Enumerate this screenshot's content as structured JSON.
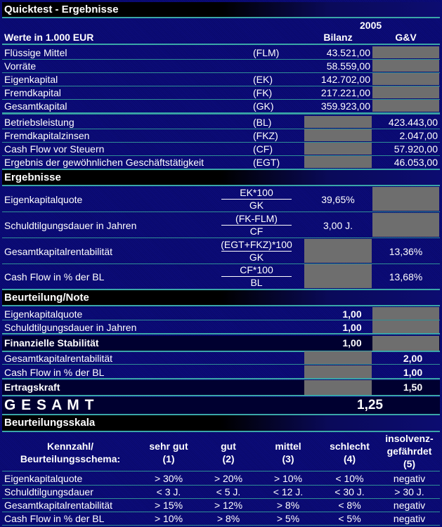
{
  "title": "Quicktest - Ergebnisse",
  "header": {
    "year": "2005",
    "units_label": "Werte in 1.000 EUR",
    "col_bilanz": "Bilanz",
    "col_guv": "G&V"
  },
  "inputs": [
    {
      "label": "Flüssige Mittel",
      "abbr": "(FLM)",
      "bilanz": "43.521,00",
      "guv": ""
    },
    {
      "label": "Vorräte",
      "abbr": "",
      "bilanz": "58.559,00",
      "guv": ""
    },
    {
      "label": "Eigenkapital",
      "abbr": "(EK)",
      "bilanz": "142.702,00",
      "guv": ""
    },
    {
      "label": "Fremdkapital",
      "abbr": "(FK)",
      "bilanz": "217.221,00",
      "guv": ""
    },
    {
      "label": "Gesamtkapital",
      "abbr": "(GK)",
      "bilanz": "359.923,00",
      "guv": ""
    },
    {
      "label": "Betriebsleistung",
      "abbr": "(BL)",
      "bilanz": "",
      "guv": "423.443,00"
    },
    {
      "label": "Fremdkapitalzinsen",
      "abbr": "(FKZ)",
      "bilanz": "",
      "guv": "2.047,00"
    },
    {
      "label": "Cash Flow vor Steuern",
      "abbr": "(CF)",
      "bilanz": "",
      "guv": "57.920,00"
    },
    {
      "label": "Ergebnis der gewöhnlichen Geschäftstätigkeit",
      "abbr": "(EGT)",
      "bilanz": "",
      "guv": "46.053,00"
    }
  ],
  "ergebnisse": {
    "title": "Ergebnisse",
    "rows": [
      {
        "label": "Eigenkapitalquote",
        "num": "EK*100",
        "den": "GK",
        "bilanz": "39,65%",
        "guv": ""
      },
      {
        "label": "Schuldtilgungsdauer in Jahren",
        "num": "(FK-FLM)",
        "den": "CF",
        "bilanz": "3,00 J.",
        "guv": ""
      },
      {
        "label": "Gesamtkapitalrentabilität",
        "num": "(EGT+FKZ)*100",
        "den": "GK",
        "bilanz": "",
        "guv": "13,36%"
      },
      {
        "label": "Cash Flow in % der BL",
        "num": "CF*100",
        "den": "BL",
        "bilanz": "",
        "guv": "13,68%"
      }
    ]
  },
  "beurteilung": {
    "title": "Beurteilung/Note",
    "rows": [
      {
        "label": "Eigenkapitalquote",
        "bilanz": "1,00",
        "guv": ""
      },
      {
        "label": "Schuldtilgungsdauer in Jahren",
        "bilanz": "1,00",
        "guv": ""
      },
      {
        "label": "Finanzielle Stabilität",
        "bilanz": "1,00",
        "guv": "",
        "summary": true
      },
      {
        "label": "Gesamtkapitalrentabilität",
        "bilanz": "",
        "guv": "2,00"
      },
      {
        "label": "Cash Flow in % der BL",
        "bilanz": "",
        "guv": "1,00"
      },
      {
        "label": "Ertragskraft",
        "bilanz": "",
        "guv": "1,50",
        "summary": true
      }
    ],
    "gesamt_label": "G E S A M T",
    "gesamt_value": "1,25"
  },
  "skala": {
    "title": "Beurteilungsskala",
    "headers": [
      [
        "Kennzahl/",
        "Beurteilungsschema:"
      ],
      [
        "sehr gut",
        "(1)"
      ],
      [
        "gut",
        "(2)"
      ],
      [
        "mittel",
        "(3)"
      ],
      [
        "schlecht",
        "(4)"
      ],
      [
        "insolvenz-",
        "gefährdet",
        "(5)"
      ]
    ],
    "rows": [
      [
        "Eigenkapitalquote",
        "> 30%",
        "> 20%",
        "> 10%",
        "< 10%",
        "negativ"
      ],
      [
        "Schuldtilgungsdauer",
        "< 3 J.",
        "< 5 J.",
        "< 12 J.",
        "< 30 J.",
        "> 30 J."
      ],
      [
        "Gesamtkapitalrentabilität",
        "> 15%",
        "> 12%",
        "> 8%",
        "< 8%",
        "negativ"
      ],
      [
        "Cash Flow in % der BL",
        "> 10%",
        "> 8%",
        "> 5%",
        "< 5%",
        "negativ"
      ]
    ]
  }
}
